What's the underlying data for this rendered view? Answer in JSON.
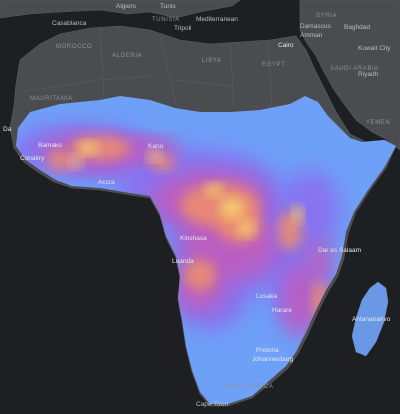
{
  "map": {
    "background": "#1e1f22",
    "land_color": "#4b4c50",
    "ramp_colors": [
      "#6fa0f7",
      "#8a6ff0",
      "#c25bb9",
      "#f08f6a",
      "#f6d76e"
    ],
    "cities": [
      {
        "id": "algiers",
        "label": "Algiers"
      },
      {
        "id": "tunis",
        "label": "Tunis"
      },
      {
        "id": "casablanca",
        "label": "Casablanca"
      },
      {
        "id": "tripoli",
        "label": "Tripoli"
      },
      {
        "id": "mediterranean",
        "label": "Mediterranean"
      },
      {
        "id": "syria",
        "label": "SYRIA"
      },
      {
        "id": "baghdad",
        "label": "Baghdad"
      },
      {
        "id": "damascus",
        "label": "Damascus"
      },
      {
        "id": "amman",
        "label": "Amman"
      },
      {
        "id": "cairo",
        "label": "Cairo"
      },
      {
        "id": "kuwait",
        "label": "Kuwait City"
      },
      {
        "id": "riyadh",
        "label": "Riyadh"
      },
      {
        "id": "dakar",
        "label": "Da"
      },
      {
        "id": "bamako",
        "label": "Bamako"
      },
      {
        "id": "conakry",
        "label": "Conakry"
      },
      {
        "id": "accra",
        "label": "Accra"
      },
      {
        "id": "kano",
        "label": "Kano"
      },
      {
        "id": "kinshasa",
        "label": "Kinshasa"
      },
      {
        "id": "luanda",
        "label": "Luanda"
      },
      {
        "id": "daressalaam",
        "label": "Dar es Salaam"
      },
      {
        "id": "lusaka",
        "label": "Lusaka"
      },
      {
        "id": "harare",
        "label": "Harare"
      },
      {
        "id": "antananarivo",
        "label": "Antananarivo"
      },
      {
        "id": "pretoria",
        "label": "Pretoria"
      },
      {
        "id": "johannesburg",
        "label": "Johannesburg"
      },
      {
        "id": "capetown",
        "label": "Cape Town"
      }
    ],
    "countries": [
      {
        "id": "tunisia",
        "label": "TUNISIA"
      },
      {
        "id": "morocco",
        "label": "MOROCCO"
      },
      {
        "id": "algeria",
        "label": "ALGERIA"
      },
      {
        "id": "libya",
        "label": "LIBYA"
      },
      {
        "id": "egypt",
        "label": "EGYPT"
      },
      {
        "id": "saudi",
        "label": "SAUDI ARABIA"
      },
      {
        "id": "mauritania",
        "label": "MAURITANIA"
      },
      {
        "id": "yemen",
        "label": "YEMEN"
      },
      {
        "id": "southafrica",
        "label": "SOUTH AFRICA"
      }
    ]
  }
}
